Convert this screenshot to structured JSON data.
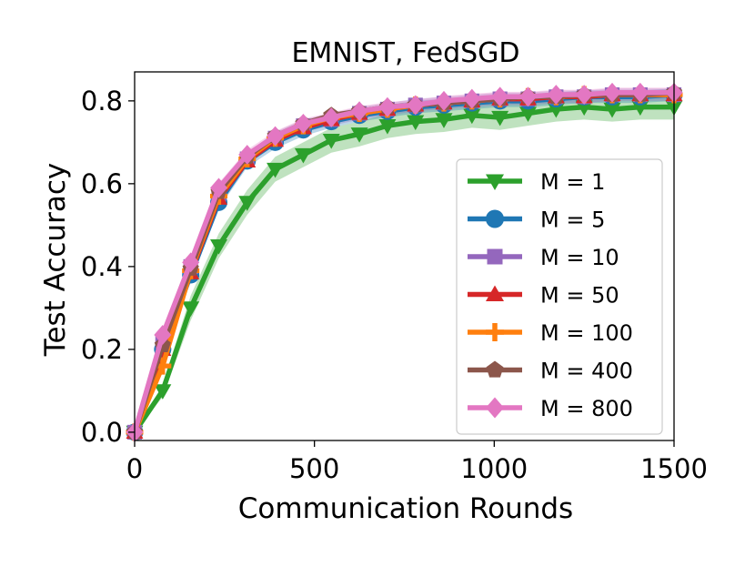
{
  "chart_data": {
    "type": "line",
    "title": "EMNIST, FedSGD",
    "xlabel": "Communication Rounds",
    "ylabel": "Test Accuracy",
    "xlim": [
      0,
      1500
    ],
    "ylim": [
      -0.02,
      0.87
    ],
    "xticks": [
      0,
      500,
      1000,
      1500
    ],
    "xtick_labels": [
      "0",
      "500",
      "1000",
      "1500"
    ],
    "yticks": [
      0.0,
      0.2,
      0.4,
      0.6,
      0.8
    ],
    "ytick_labels": [
      "0.0",
      "0.2",
      "0.4",
      "0.6",
      "0.8"
    ],
    "grid": false,
    "legend_position": "center-right",
    "x": [
      0,
      78,
      156,
      234,
      313,
      391,
      469,
      547,
      625,
      703,
      781,
      860,
      938,
      1016,
      1094,
      1172,
      1250,
      1328,
      1406,
      1500
    ],
    "series": [
      {
        "name": "M = 1",
        "color": "#2ca02c",
        "marker": "triangle-down",
        "values": [
          0.0,
          0.1,
          0.3,
          0.45,
          0.555,
          0.635,
          0.67,
          0.705,
          0.72,
          0.74,
          0.75,
          0.755,
          0.765,
          0.76,
          0.77,
          0.78,
          0.785,
          0.78,
          0.785,
          0.785
        ],
        "band": 0.03
      },
      {
        "name": "M = 5",
        "color": "#1f77b4",
        "marker": "circle",
        "values": [
          0.0,
          0.2,
          0.38,
          0.555,
          0.655,
          0.7,
          0.73,
          0.75,
          0.765,
          0.775,
          0.785,
          0.79,
          0.795,
          0.8,
          0.8,
          0.805,
          0.81,
          0.81,
          0.81,
          0.815
        ],
        "band": 0.015
      },
      {
        "name": "M = 10",
        "color": "#9467bd",
        "marker": "square",
        "values": [
          0.0,
          0.22,
          0.4,
          0.575,
          0.66,
          0.71,
          0.74,
          0.755,
          0.77,
          0.78,
          0.79,
          0.795,
          0.8,
          0.805,
          0.805,
          0.81,
          0.81,
          0.815,
          0.815,
          0.815
        ],
        "band": 0.015
      },
      {
        "name": "M = 50",
        "color": "#d62728",
        "marker": "triangle-up",
        "values": [
          0.0,
          0.2,
          0.385,
          0.565,
          0.655,
          0.705,
          0.735,
          0.755,
          0.77,
          0.78,
          0.79,
          0.795,
          0.8,
          0.805,
          0.805,
          0.81,
          0.81,
          0.815,
          0.815,
          0.815
        ],
        "band": 0.0
      },
      {
        "name": "M = 100",
        "color": "#ff7f0e",
        "marker": "plus",
        "values": [
          0.0,
          0.16,
          0.39,
          0.57,
          0.66,
          0.71,
          0.74,
          0.76,
          0.77,
          0.78,
          0.79,
          0.795,
          0.8,
          0.805,
          0.81,
          0.81,
          0.815,
          0.815,
          0.815,
          0.815
        ],
        "band": 0.0
      },
      {
        "name": "M = 400",
        "color": "#8c564b",
        "marker": "pentagon",
        "values": [
          0.0,
          0.21,
          0.395,
          0.58,
          0.665,
          0.715,
          0.745,
          0.765,
          0.775,
          0.785,
          0.79,
          0.795,
          0.8,
          0.805,
          0.81,
          0.81,
          0.815,
          0.815,
          0.815,
          0.82
        ],
        "band": 0.0
      },
      {
        "name": "M = 800",
        "color": "#e377c2",
        "marker": "diamond",
        "values": [
          0.0,
          0.235,
          0.41,
          0.59,
          0.67,
          0.715,
          0.745,
          0.76,
          0.775,
          0.785,
          0.79,
          0.8,
          0.805,
          0.81,
          0.81,
          0.815,
          0.815,
          0.82,
          0.82,
          0.82
        ],
        "band": 0.012
      }
    ]
  }
}
